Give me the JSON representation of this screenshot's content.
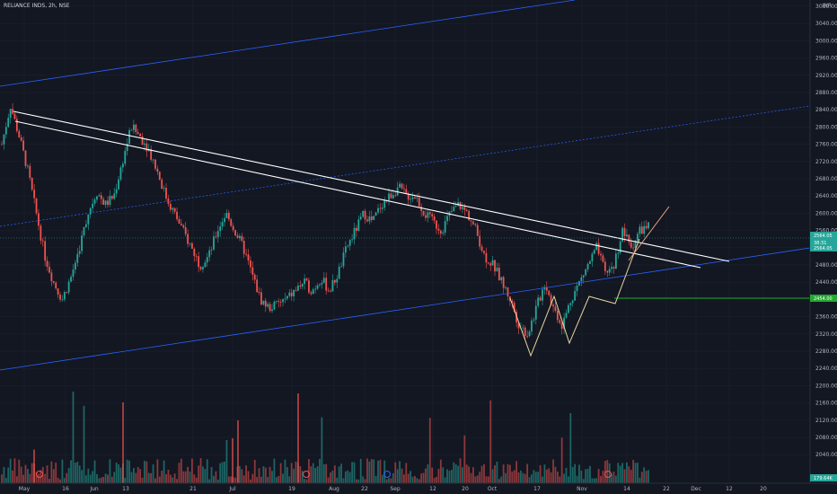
{
  "header": {
    "symbol": "RELIANCE INDS, 2h, NSE",
    "currency": "INR"
  },
  "colors": {
    "bg": "#131722",
    "up": "#26a69a",
    "down": "#ef5350",
    "channel": "#2962ff",
    "trend": "#ffffff",
    "support": "#22ab2f",
    "pattern": "#e8d5a0",
    "projection": "#f7a88a",
    "price_line": "#26a69a",
    "grid": "#1e2230"
  },
  "price_axis": {
    "labels": [
      "3080.00",
      "3040.00",
      "3000.00",
      "2960.00",
      "2920.00",
      "2880.00",
      "2840.00",
      "2800.00",
      "2760.00",
      "2720.00",
      "2680.00",
      "2640.00",
      "2600.00",
      "2560.00",
      "2520.00",
      "2480.00",
      "2440.00",
      "2400.00",
      "2360.00",
      "2320.00",
      "2280.00",
      "2240.00",
      "2200.00",
      "2160.00",
      "2120.00",
      "2080.00",
      "2040.00"
    ],
    "last_price": "2564.05",
    "last_change": "38:31",
    "support_price": "2454.00",
    "volume_badge": "179.64K"
  },
  "time_axis": {
    "labels": [
      "May",
      "16",
      "Jun",
      "13",
      "21",
      "Jul",
      "19",
      "Aug",
      "22",
      "Sep",
      "12",
      "20",
      "Oct",
      "17",
      "Nov",
      "14",
      "22",
      "Dec",
      "12",
      "20"
    ]
  },
  "chart_data": {
    "type": "candlestick",
    "title": "RELIANCE INDS, 2h, NSE",
    "ylim": [
      2040,
      3100
    ],
    "price_path": [
      2760,
      2850,
      2780,
      2700,
      2600,
      2500,
      2440,
      2400,
      2450,
      2520,
      2600,
      2650,
      2620,
      2640,
      2720,
      2800,
      2780,
      2750,
      2700,
      2640,
      2600,
      2560,
      2520,
      2480,
      2500,
      2560,
      2600,
      2560,
      2520,
      2460,
      2400,
      2380,
      2390,
      2400,
      2420,
      2440,
      2420,
      2450,
      2420,
      2460,
      2520,
      2560,
      2600,
      2580,
      2620,
      2640,
      2660,
      2640,
      2640,
      2600,
      2580,
      2560,
      2600,
      2620,
      2600,
      2560,
      2500,
      2480,
      2440,
      2400,
      2340,
      2320,
      2380,
      2440,
      2380,
      2340,
      2400,
      2440,
      2480,
      2520,
      2460,
      2480,
      2560,
      2520,
      2560,
      2570
    ],
    "pattern_points": [
      [
        2480,
        2312
      ],
      [
        2450,
        2336
      ],
      [
        2450,
        2454
      ],
      [
        2560,
        2600
      ]
    ],
    "support_level": 2454,
    "volume_spikes": [
      360,
      200,
      280,
      150,
      400
    ]
  }
}
